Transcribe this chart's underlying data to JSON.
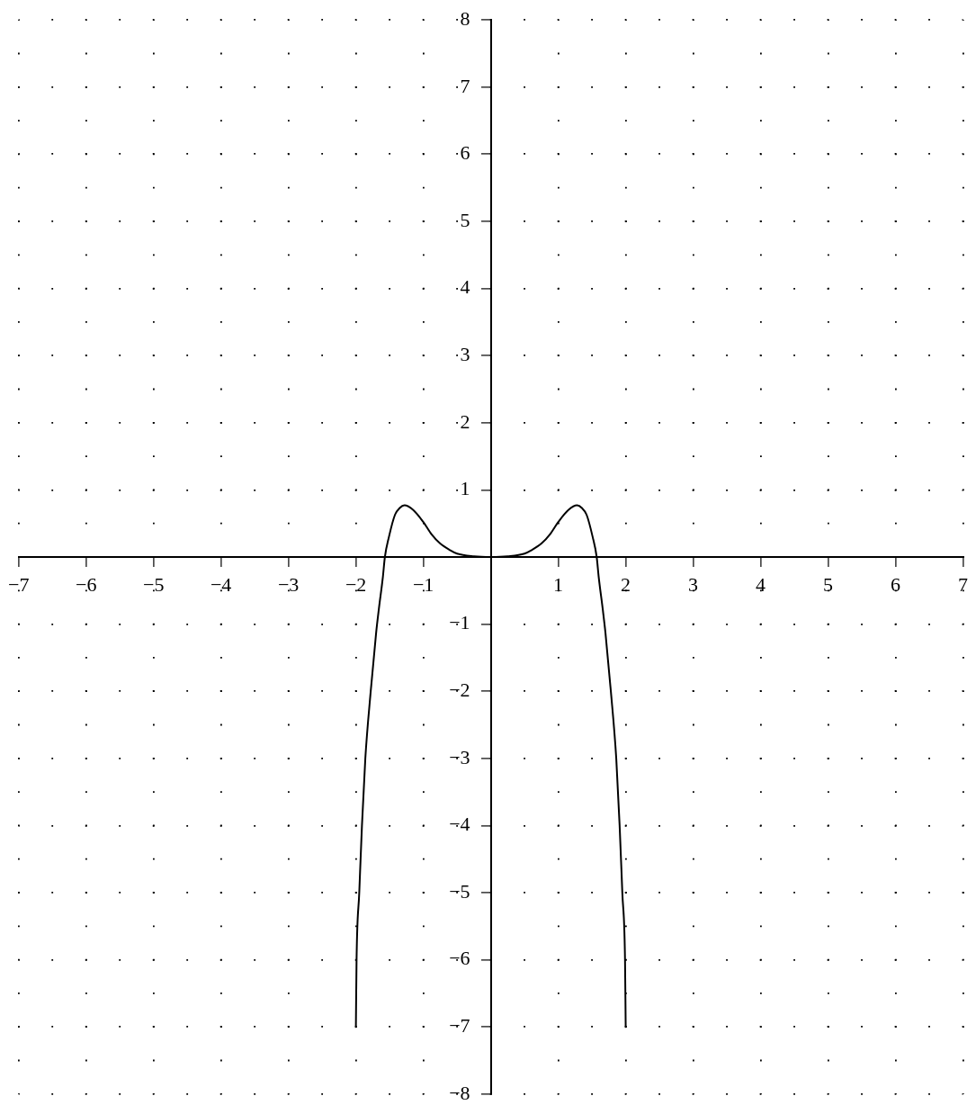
{
  "chart_data": {
    "type": "line",
    "x": [
      -2,
      -1.99,
      -1.95,
      -1.91,
      -1.86,
      -1.78,
      -1.7,
      -1.66,
      -1.6,
      -1.57,
      -1.51,
      -1.42,
      -1.35,
      -1.28,
      -1.15,
      -1.0,
      -0.88,
      -0.75,
      -0.6,
      -0.5,
      -0.25,
      0,
      0.25,
      0.5,
      0.6,
      0.75,
      0.88,
      1.0,
      1.15,
      1.28,
      1.35,
      1.42,
      1.51,
      1.57,
      1.6,
      1.66,
      1.7,
      1.78,
      1.86,
      1.91,
      1.95,
      1.99,
      2
    ],
    "values": [
      -7,
      -6,
      -5,
      -4,
      -3,
      -2,
      -1.13,
      -0.78,
      -0.3,
      0,
      0.3,
      0.63,
      0.73,
      0.77,
      0.7,
      0.52,
      0.34,
      0.2,
      0.1,
      0.05,
      0.01,
      0,
      0.01,
      0.05,
      0.1,
      0.2,
      0.34,
      0.52,
      0.7,
      0.77,
      0.73,
      0.63,
      0.3,
      0,
      -0.3,
      -0.78,
      -1.13,
      -2,
      -3,
      -4,
      -5,
      -6,
      -7
    ],
    "color": "#000000",
    "xlim": [
      -7,
      7
    ],
    "ylim": [
      -8,
      8
    ],
    "xticks": [
      {
        "value": -7,
        "label": "−7"
      },
      {
        "value": -6,
        "label": "−6"
      },
      {
        "value": -5,
        "label": "−5"
      },
      {
        "value": -4,
        "label": "−4"
      },
      {
        "value": -3,
        "label": "−3"
      },
      {
        "value": -2,
        "label": "−2"
      },
      {
        "value": -1,
        "label": "−1"
      },
      1,
      2,
      3,
      4,
      5,
      6,
      7
    ],
    "yticks": [
      {
        "value": -8,
        "label": "−8"
      },
      {
        "value": -7,
        "label": "−7"
      },
      {
        "value": -6,
        "label": "−6"
      },
      {
        "value": -5,
        "label": "−5"
      },
      {
        "value": -4,
        "label": "−4"
      },
      {
        "value": -3,
        "label": "−3"
      },
      {
        "value": -2,
        "label": "−2"
      },
      {
        "value": -1,
        "label": "−1"
      },
      1,
      2,
      3,
      4,
      5,
      6,
      7,
      8
    ],
    "grid": true
  }
}
